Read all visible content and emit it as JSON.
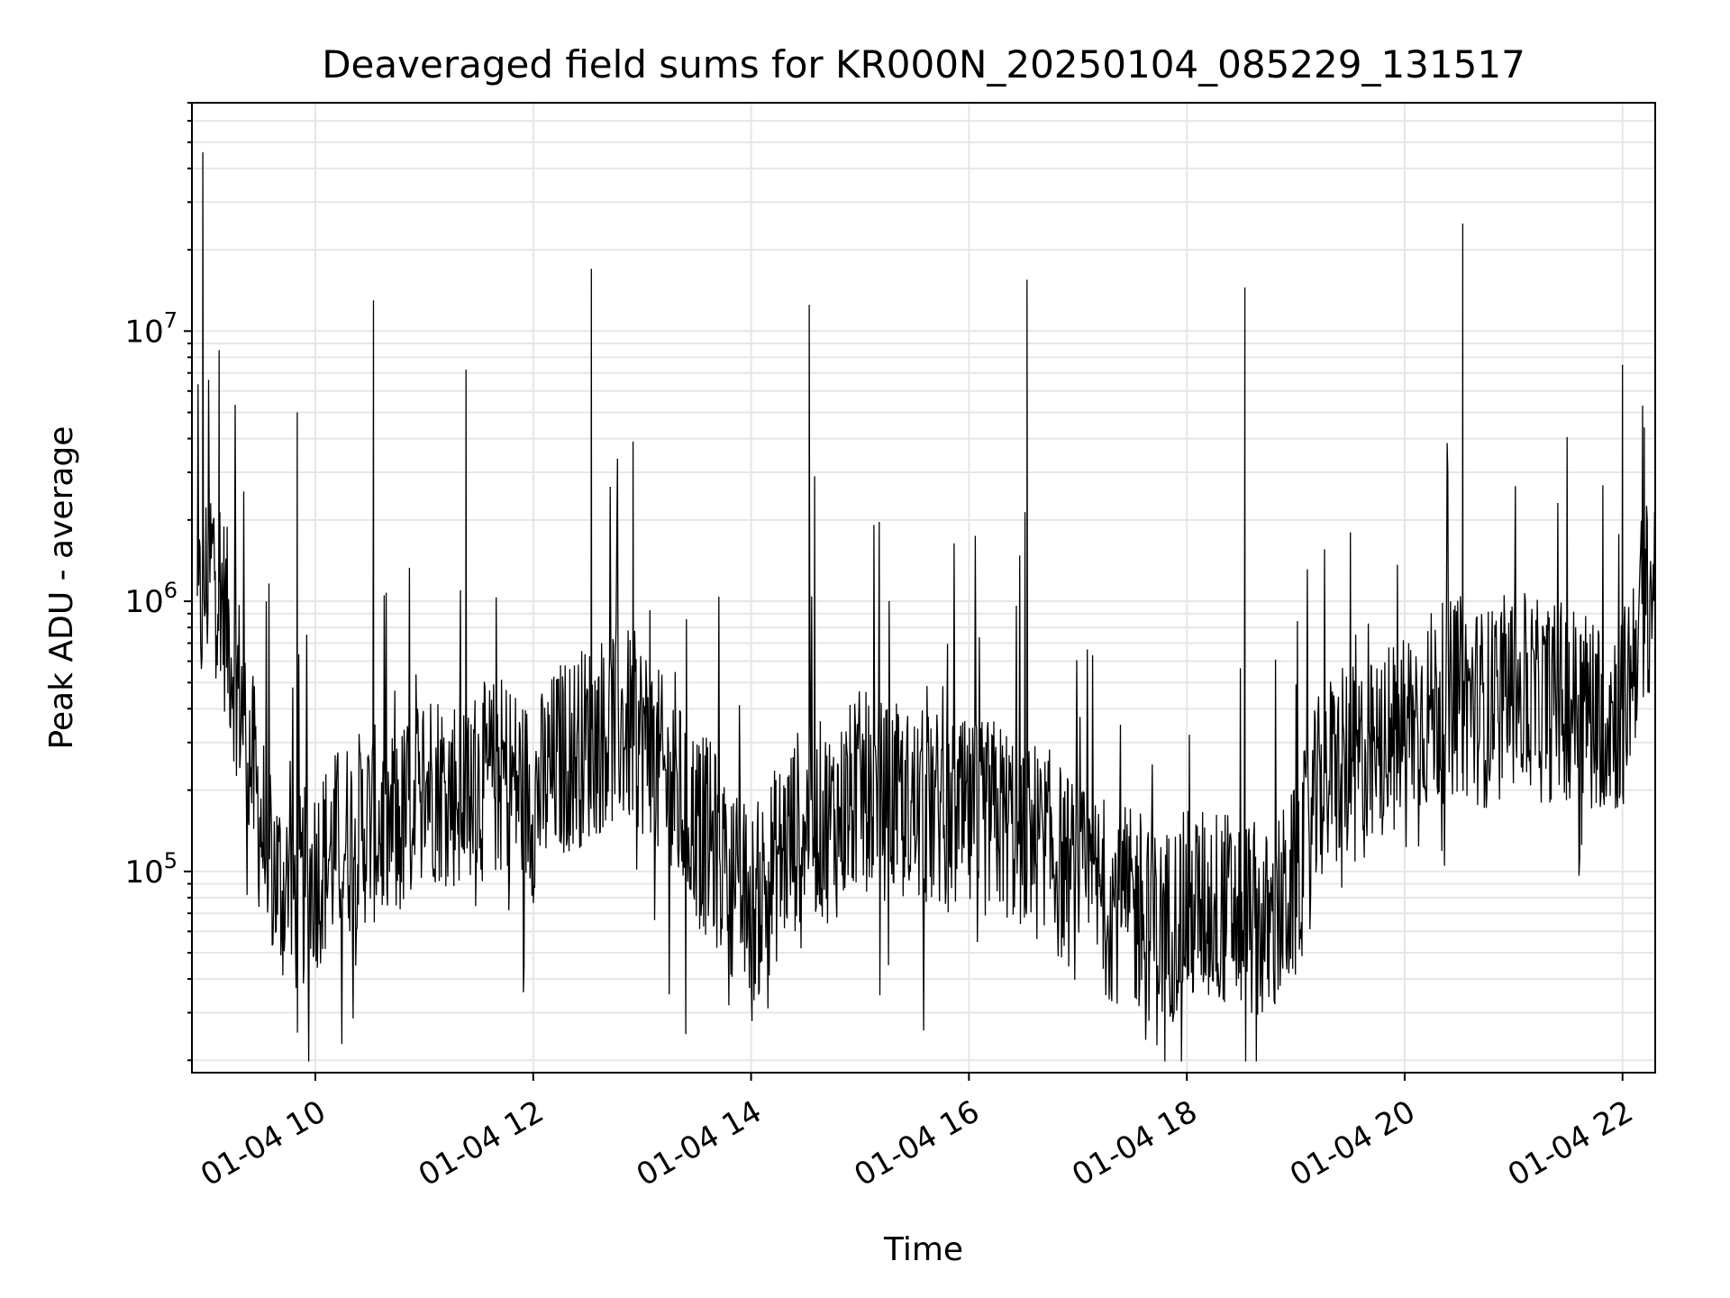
{
  "chart_data": {
    "type": "line",
    "title": "Deaveraged field sums for KR000N_20250104_085229_131517",
    "xlabel": "Time",
    "ylabel": "Peak ADU - average",
    "y_scale": "log",
    "ylim": [
      18000,
      70000000
    ],
    "xlim": [
      "2025-01-04 08:52",
      "2025-01-04 22:18"
    ],
    "grid": true,
    "line_color": "#000000",
    "grid_color": "#e6e6e6",
    "x_ticks": [
      {
        "time": "2025-01-04 10:00",
        "label": "01-04 10"
      },
      {
        "time": "2025-01-04 12:00",
        "label": "01-04 12"
      },
      {
        "time": "2025-01-04 14:00",
        "label": "01-04 14"
      },
      {
        "time": "2025-01-04 16:00",
        "label": "01-04 16"
      },
      {
        "time": "2025-01-04 18:00",
        "label": "01-04 18"
      },
      {
        "time": "2025-01-04 20:00",
        "label": "01-04 20"
      },
      {
        "time": "2025-01-04 22:00",
        "label": "01-04 22"
      }
    ],
    "y_ticks": [
      {
        "value": 100000,
        "base": "10",
        "exp": "5"
      },
      {
        "value": 1000000,
        "base": "10",
        "exp": "6"
      },
      {
        "value": 10000000,
        "base": "10",
        "exp": "7"
      }
    ],
    "series": [
      {
        "x": [
          "2025-01-04 08:55",
          "2025-01-04 09:00",
          "2025-01-04 09:05",
          "2025-01-04 09:10",
          "2025-01-04 09:15",
          "2025-01-04 09:20",
          "2025-01-04 09:30",
          "2025-01-04 09:40",
          "2025-01-04 09:50",
          "2025-01-04 10:00",
          "2025-01-04 10:15",
          "2025-01-04 10:30",
          "2025-01-04 10:45",
          "2025-01-04 11:00",
          "2025-01-04 11:15",
          "2025-01-04 11:30",
          "2025-01-04 11:45",
          "2025-01-04 12:00",
          "2025-01-04 12:15",
          "2025-01-04 12:30",
          "2025-01-04 12:45",
          "2025-01-04 13:00",
          "2025-01-04 13:15",
          "2025-01-04 13:30",
          "2025-01-04 13:45",
          "2025-01-04 14:00",
          "2025-01-04 14:15",
          "2025-01-04 14:30",
          "2025-01-04 14:45",
          "2025-01-04 15:00",
          "2025-01-04 15:15",
          "2025-01-04 15:30",
          "2025-01-04 15:45",
          "2025-01-04 16:00",
          "2025-01-04 16:15",
          "2025-01-04 16:30",
          "2025-01-04 16:45",
          "2025-01-04 17:00",
          "2025-01-04 17:15",
          "2025-01-04 17:30",
          "2025-01-04 17:45",
          "2025-01-04 18:00",
          "2025-01-04 18:15",
          "2025-01-04 18:30",
          "2025-01-04 18:45",
          "2025-01-04 19:00",
          "2025-01-04 19:15",
          "2025-01-04 19:30",
          "2025-01-04 19:45",
          "2025-01-04 20:00",
          "2025-01-04 20:15",
          "2025-01-04 20:30",
          "2025-01-04 20:45",
          "2025-01-04 21:00",
          "2025-01-04 21:15",
          "2025-01-04 21:30",
          "2025-01-04 21:45",
          "2025-01-04 22:00",
          "2025-01-04 22:10",
          "2025-01-04 22:18"
        ],
        "y": [
          800000,
          1200000,
          1500000,
          900000,
          600000,
          400000,
          150000,
          90000,
          80000,
          100000,
          130000,
          150000,
          140000,
          220000,
          200000,
          210000,
          230000,
          180000,
          260000,
          300000,
          350000,
          320000,
          200000,
          150000,
          110000,
          70000,
          110000,
          160000,
          150000,
          200000,
          180000,
          170000,
          170000,
          150000,
          160000,
          140000,
          120000,
          90000,
          80000,
          72000,
          60000,
          72000,
          75000,
          70000,
          60000,
          90000,
          220000,
          250000,
          260000,
          350000,
          400000,
          450000,
          400000,
          480000,
          420000,
          430000,
          400000,
          380000,
          900000,
          1200000
        ]
      }
    ],
    "spikes": [
      {
        "time": "2025-01-04 08:58",
        "value": 46000000
      },
      {
        "time": "2025-01-04 09:07",
        "value": 8500000
      },
      {
        "time": "2025-01-04 09:50",
        "value": 5000000
      },
      {
        "time": "2025-01-04 10:32",
        "value": 13000000
      },
      {
        "time": "2025-01-04 11:23",
        "value": 7200000
      },
      {
        "time": "2025-01-04 12:32",
        "value": 17000000
      },
      {
        "time": "2025-01-04 12:55",
        "value": 3900000
      },
      {
        "time": "2025-01-04 14:32",
        "value": 12500000
      },
      {
        "time": "2025-01-04 14:35",
        "value": 2900000
      },
      {
        "time": "2025-01-04 16:32",
        "value": 15500000
      },
      {
        "time": "2025-01-04 18:32",
        "value": 14500000
      },
      {
        "time": "2025-01-04 20:32",
        "value": 25000000
      },
      {
        "time": "2025-01-04 22:00",
        "value": 7500000
      },
      {
        "time": "2025-01-04 22:12",
        "value": 4400000
      }
    ]
  }
}
